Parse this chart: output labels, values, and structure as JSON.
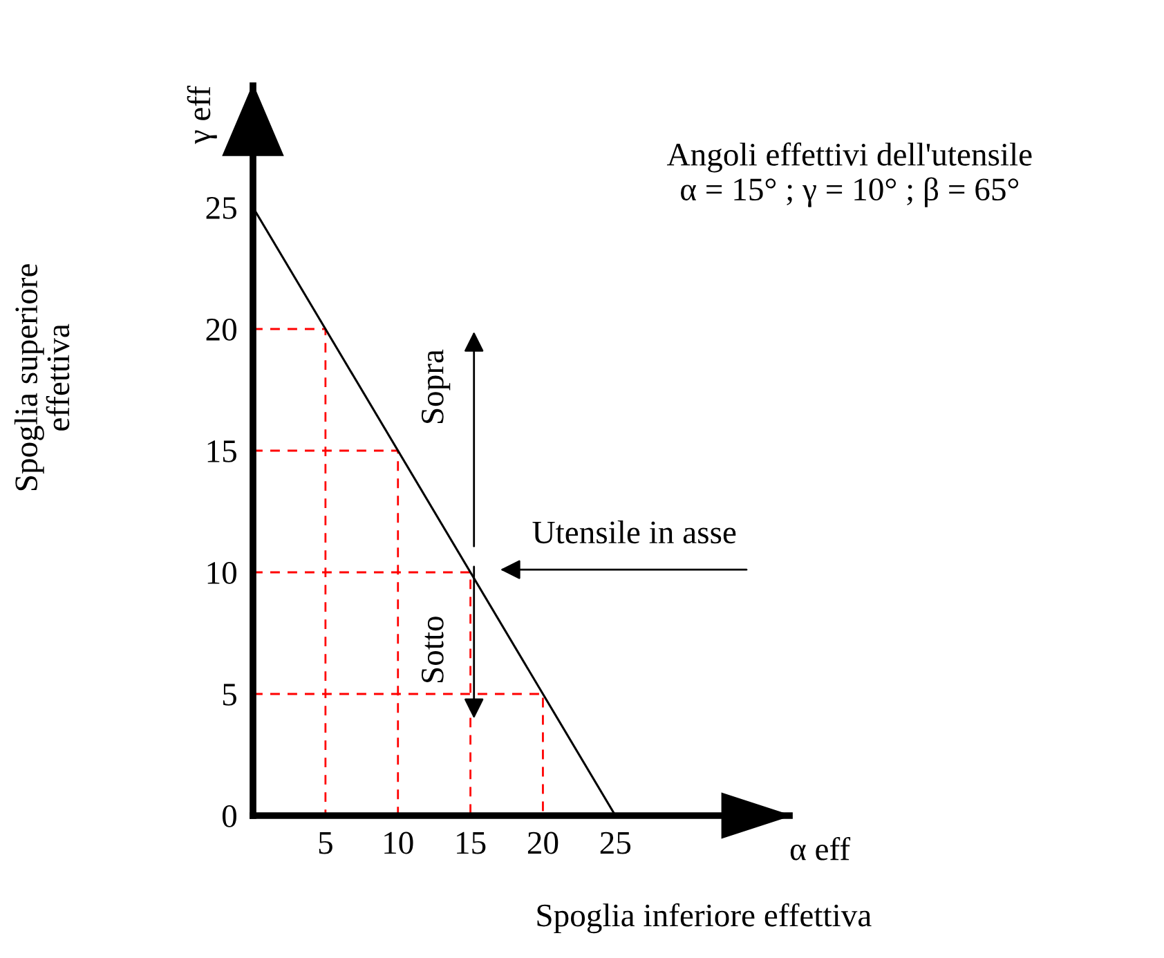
{
  "chart_data": {
    "type": "line",
    "title": "Angoli effettivi dell'utensile",
    "subtitle": "α = 15° ; γ = 10° ; β = 65°",
    "xlabel": "Spoglia inferiore effettiva",
    "ylabel": "Spoglia superiore\neffettiva",
    "xlim": [
      0,
      37
    ],
    "ylim": [
      0,
      30
    ],
    "xticks": [
      5,
      10,
      15,
      20,
      25
    ],
    "yticks": [
      0,
      5,
      10,
      15,
      20,
      25
    ],
    "grid": false,
    "marker": "none",
    "series": [
      {
        "color": "#000000",
        "line_style": "solid",
        "x": [
          0,
          25
        ],
        "values": [
          25,
          0
        ]
      },
      {
        "color": "#ff0000",
        "line_style": "dashed",
        "x": [
          0,
          5,
          5
        ],
        "values": [
          20,
          20,
          0
        ]
      },
      {
        "color": "#ff0000",
        "line_style": "dashed",
        "x": [
          0,
          10,
          10
        ],
        "values": [
          15,
          15,
          0
        ]
      },
      {
        "color": "#ff0000",
        "line_style": "dashed",
        "x": [
          0,
          15,
          15
        ],
        "values": [
          10,
          10,
          0
        ]
      },
      {
        "color": "#ff0000",
        "line_style": "dashed",
        "x": [
          0,
          20,
          20
        ],
        "values": [
          5,
          5,
          0
        ]
      }
    ],
    "annotations": [
      "Sopra",
      "Sotto",
      "Utensile in asse",
      "α eff",
      "γ eff"
    ]
  }
}
